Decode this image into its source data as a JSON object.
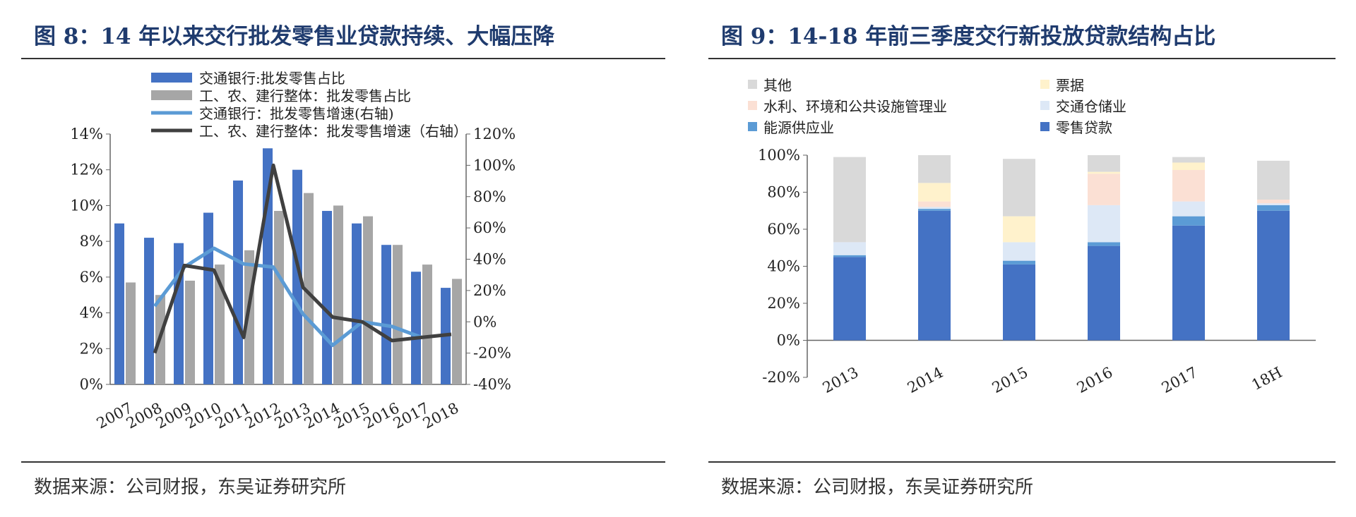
{
  "left": {
    "title": "图 8：14 年以来交行批发零售业贷款持续、大幅压降",
    "source": "数据来源：公司财报，东吴证券研究所"
  },
  "right": {
    "title": "图 9：14-18 年前三季度交行新投放贷款结构占比",
    "source": "数据来源：公司财报，东吴证券研究所"
  },
  "chart_data": [
    {
      "type": "bar",
      "categories": [
        "2007",
        "2008",
        "2009",
        "2010",
        "2011",
        "2012",
        "2013",
        "2014",
        "2015",
        "2016",
        "2017",
        "2018"
      ],
      "series": [
        {
          "name": "交通银行:批发零售占比",
          "kind": "bar",
          "axis": "left",
          "color": "#4472c4",
          "values": [
            9.0,
            8.2,
            7.9,
            9.6,
            11.4,
            13.2,
            12.0,
            9.7,
            9.0,
            7.8,
            6.3,
            5.4
          ]
        },
        {
          "name": "工、农、建行整体：批发零售占比",
          "kind": "bar",
          "axis": "left",
          "color": "#a6a6a6",
          "values": [
            5.7,
            5.0,
            5.8,
            6.7,
            7.5,
            9.7,
            10.7,
            10.0,
            9.4,
            7.8,
            6.7,
            5.9
          ]
        },
        {
          "name": "交通银行：批发零售增速(右轴)",
          "kind": "line",
          "axis": "right",
          "color": "#5b9bd5",
          "values": [
            null,
            10,
            35,
            47,
            37,
            35,
            5,
            -15,
            0,
            -3,
            -10,
            null
          ]
        },
        {
          "name": "工、农、建行整体：批发零售增速（右轴）",
          "kind": "line",
          "axis": "right",
          "color": "#404040",
          "values": [
            null,
            -20,
            36,
            33,
            -10,
            100,
            22,
            3,
            0,
            -12,
            -10,
            -8
          ]
        }
      ],
      "y_left": {
        "ticks": [
          "14%",
          "12%",
          "10%",
          "8%",
          "6%",
          "4%",
          "2%",
          "0%"
        ],
        "range": [
          0,
          14
        ]
      },
      "y_right": {
        "ticks": [
          "120%",
          "100%",
          "80%",
          "60%",
          "40%",
          "20%",
          "0%",
          "-20%",
          "-40%"
        ],
        "range": [
          -40,
          120
        ]
      },
      "legend_position": "top-left",
      "grid": false
    },
    {
      "type": "bar",
      "stacked": true,
      "categories": [
        "2013",
        "2014",
        "2015",
        "2016",
        "2017",
        "18H"
      ],
      "series": [
        {
          "name": "零售贷款",
          "color": "#4472c4",
          "values": [
            45,
            70,
            41,
            51,
            62,
            70
          ]
        },
        {
          "name": "能源供应业",
          "color": "#5b9bd5",
          "values": [
            1,
            1,
            2,
            2,
            5,
            3
          ]
        },
        {
          "name": "交通仓储业",
          "color": "#dde8f6",
          "values": [
            7,
            1,
            10,
            20,
            8,
            1
          ]
        },
        {
          "name": "水利、环境和公共设施管理业",
          "color": "#fbe0d4",
          "values": [
            0,
            3,
            0,
            17,
            17,
            2
          ]
        },
        {
          "name": "票据",
          "color": "#fff2cc",
          "values": [
            0,
            10,
            14,
            1,
            4,
            0
          ]
        },
        {
          "name": "其他",
          "color": "#d9d9d9",
          "values": [
            46,
            15,
            31,
            9,
            3,
            21
          ]
        }
      ],
      "y": {
        "ticks": [
          "100%",
          "80%",
          "60%",
          "40%",
          "20%",
          "0%",
          "-20%"
        ],
        "range": [
          -20,
          100
        ]
      },
      "legend_position": "top",
      "grid": false
    }
  ]
}
